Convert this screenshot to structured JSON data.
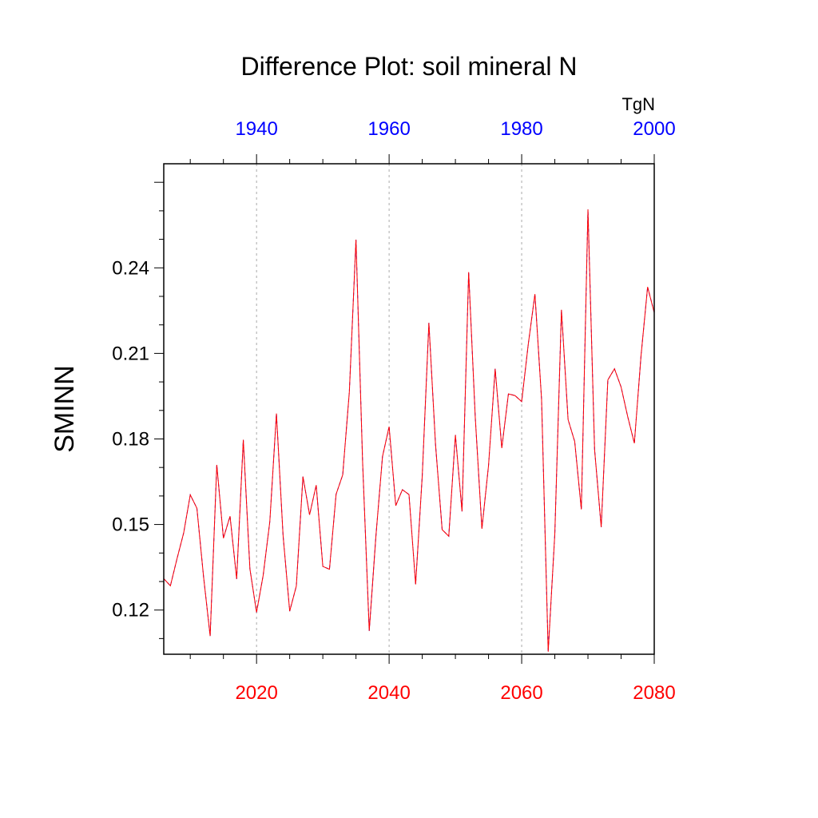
{
  "chart_data": {
    "type": "line",
    "title": "Difference Plot: soil mineral N",
    "ylabel": "SMINN",
    "units": "TgN",
    "xlabel": "",
    "xlim": [
      2006,
      2080
    ],
    "ylim": [
      0.1045,
      0.2765
    ],
    "grid": "vertical dotted lines at bottom-axis major ticks",
    "bottom_axis": {
      "color": "#ff0000",
      "ticks": [
        2020,
        2040,
        2060,
        2080
      ],
      "tick_labels": [
        "2020",
        "2040",
        "2060",
        "2080"
      ]
    },
    "top_axis": {
      "color": "#0000ff",
      "offset_years": -80,
      "ticks": [
        1940,
        1960,
        1980,
        2000
      ],
      "tick_labels": [
        "1940",
        "1960",
        "1980",
        "2000"
      ]
    },
    "y_ticks": [
      0.12,
      0.15,
      0.18,
      0.21,
      0.24
    ],
    "y_tick_labels": [
      "0.12",
      "0.15",
      "0.18",
      "0.21",
      "0.24"
    ],
    "series": [
      {
        "color": "#0000ff",
        "style": "dashed",
        "x": [
          2006,
          2007,
          2008,
          2009,
          2010,
          2011,
          2012,
          2013,
          2014,
          2015,
          2016,
          2017,
          2018,
          2019,
          2020,
          2021,
          2022,
          2023,
          2024,
          2025,
          2026,
          2027,
          2028,
          2029,
          2030,
          2031,
          2032,
          2033,
          2034,
          2035,
          2036,
          2037,
          2038,
          2039,
          2040,
          2041,
          2042,
          2043,
          2044,
          2045,
          2046,
          2047,
          2048,
          2049,
          2050,
          2051,
          2052,
          2053,
          2054,
          2055,
          2056,
          2057,
          2058,
          2059,
          2060,
          2061,
          2062,
          2063,
          2064,
          2065,
          2066,
          2067,
          2068,
          2069,
          2070,
          2071,
          2072,
          2073,
          2074,
          2075,
          2076,
          2077,
          2078,
          2079,
          2080
        ],
        "values": [
          0.131,
          0.1285,
          0.138,
          0.147,
          0.1604,
          0.1557,
          0.1318,
          0.1109,
          0.1709,
          0.1452,
          0.1529,
          0.1309,
          0.1797,
          0.1344,
          0.1192,
          0.1322,
          0.151,
          0.1889,
          0.1462,
          0.1196,
          0.1284,
          0.1668,
          0.1534,
          0.1638,
          0.1353,
          0.1343,
          0.1606,
          0.1674,
          0.1965,
          0.2499,
          0.1719,
          0.1127,
          0.1457,
          0.1738,
          0.1843,
          0.1566,
          0.1622,
          0.1605,
          0.129,
          0.1671,
          0.2207,
          0.1781,
          0.1482,
          0.1459,
          0.1814,
          0.1546,
          0.2385,
          0.1875,
          0.1485,
          0.1707,
          0.2046,
          0.1768,
          0.1958,
          0.1952,
          0.1931,
          0.2133,
          0.2308,
          0.1939,
          0.1054,
          0.1467,
          0.2253,
          0.1868,
          0.1791,
          0.1553,
          0.2605,
          0.1763,
          0.1491,
          0.2007,
          0.2046,
          0.1982,
          0.1878,
          0.1785,
          0.209,
          0.2333,
          0.2243
        ]
      },
      {
        "color": "#ff0000",
        "style": "solid",
        "x": [
          2006,
          2007,
          2008,
          2009,
          2010,
          2011,
          2012,
          2013,
          2014,
          2015,
          2016,
          2017,
          2018,
          2019,
          2020,
          2021,
          2022,
          2023,
          2024,
          2025,
          2026,
          2027,
          2028,
          2029,
          2030,
          2031,
          2032,
          2033,
          2034,
          2035,
          2036,
          2037,
          2038,
          2039,
          2040,
          2041,
          2042,
          2043,
          2044,
          2045,
          2046,
          2047,
          2048,
          2049,
          2050,
          2051,
          2052,
          2053,
          2054,
          2055,
          2056,
          2057,
          2058,
          2059,
          2060,
          2061,
          2062,
          2063,
          2064,
          2065,
          2066,
          2067,
          2068,
          2069,
          2070,
          2071,
          2072,
          2073,
          2074,
          2075,
          2076,
          2077,
          2078,
          2079,
          2080
        ],
        "values": [
          0.131,
          0.1285,
          0.138,
          0.147,
          0.1604,
          0.1557,
          0.1318,
          0.1109,
          0.1709,
          0.1452,
          0.1529,
          0.1309,
          0.1797,
          0.1344,
          0.1192,
          0.1322,
          0.151,
          0.1889,
          0.1462,
          0.1196,
          0.1284,
          0.1668,
          0.1534,
          0.1638,
          0.1353,
          0.1343,
          0.1606,
          0.1674,
          0.1965,
          0.2499,
          0.1719,
          0.1127,
          0.1457,
          0.1738,
          0.1843,
          0.1566,
          0.1622,
          0.1605,
          0.129,
          0.1671,
          0.2207,
          0.1781,
          0.1482,
          0.1459,
          0.1814,
          0.1546,
          0.2385,
          0.1875,
          0.1485,
          0.1707,
          0.2046,
          0.1768,
          0.1958,
          0.1952,
          0.1931,
          0.2133,
          0.2308,
          0.1939,
          0.1054,
          0.1467,
          0.2253,
          0.1868,
          0.1791,
          0.1553,
          0.2605,
          0.1763,
          0.1491,
          0.2007,
          0.2046,
          0.1982,
          0.1878,
          0.1785,
          0.209,
          0.2333,
          0.2243
        ]
      }
    ]
  }
}
